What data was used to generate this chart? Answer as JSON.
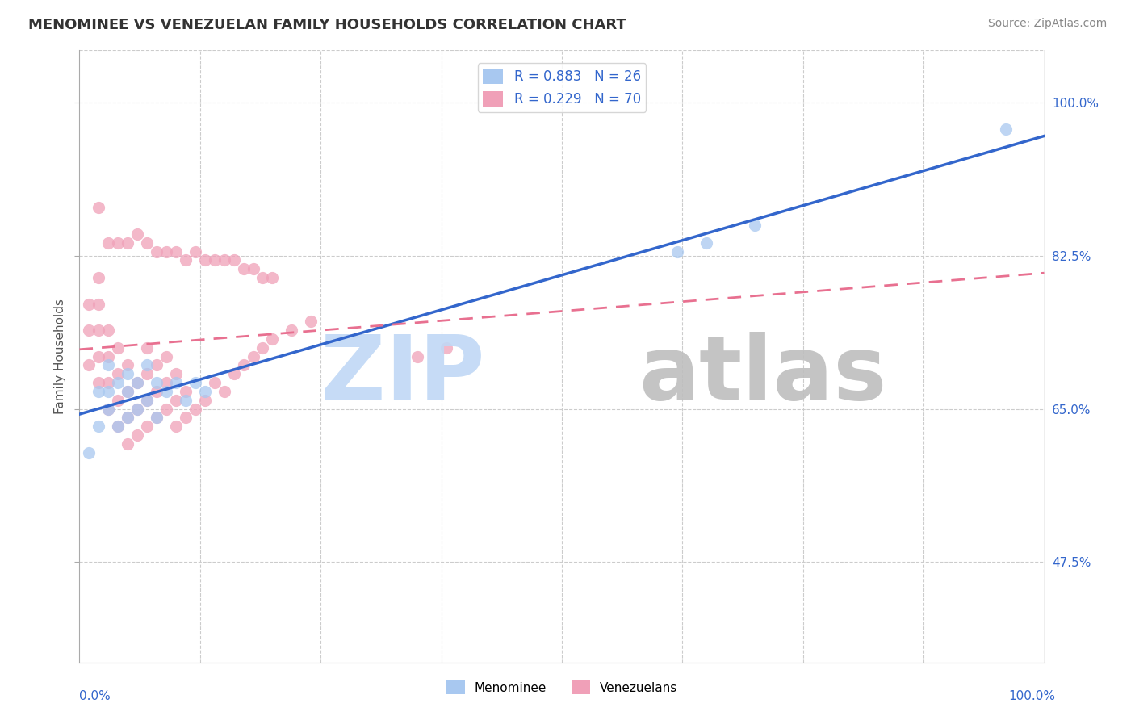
{
  "title": "MENOMINEE VS VENEZUELAN FAMILY HOUSEHOLDS CORRELATION CHART",
  "source": "Source: ZipAtlas.com",
  "ylabel": "Family Households",
  "ytick_vals": [
    0.475,
    0.65,
    0.825,
    1.0
  ],
  "ytick_labels": [
    "47.5%",
    "65.0%",
    "82.5%",
    "100.0%"
  ],
  "xmin": 0.0,
  "xmax": 1.0,
  "ymin": 0.36,
  "ymax": 1.06,
  "legend_blue_label": "R = 0.883   N = 26",
  "legend_pink_label": "R = 0.229   N = 70",
  "bottom_blue_label": "Menominee",
  "bottom_pink_label": "Venezuelans",
  "blue_scatter_color": "#A8C8F0",
  "pink_scatter_color": "#F0A0B8",
  "blue_line_color": "#3366CC",
  "pink_line_color": "#E87090",
  "grid_color": "#CCCCCC",
  "background_color": "#FFFFFF",
  "title_color": "#333333",
  "source_color": "#888888",
  "axis_label_color": "#555555",
  "tick_label_color": "#3366CC",
  "menominee_x": [
    0.01,
    0.02,
    0.02,
    0.03,
    0.03,
    0.03,
    0.04,
    0.04,
    0.05,
    0.05,
    0.05,
    0.06,
    0.06,
    0.07,
    0.07,
    0.08,
    0.08,
    0.09,
    0.1,
    0.11,
    0.12,
    0.13,
    0.62,
    0.65,
    0.7,
    0.96
  ],
  "menominee_y": [
    0.6,
    0.63,
    0.67,
    0.65,
    0.67,
    0.7,
    0.63,
    0.68,
    0.64,
    0.67,
    0.69,
    0.65,
    0.68,
    0.66,
    0.7,
    0.64,
    0.68,
    0.67,
    0.68,
    0.66,
    0.68,
    0.67,
    0.83,
    0.84,
    0.86,
    0.97
  ],
  "venezuelan_x": [
    0.01,
    0.01,
    0.01,
    0.02,
    0.02,
    0.02,
    0.02,
    0.02,
    0.03,
    0.03,
    0.03,
    0.03,
    0.04,
    0.04,
    0.04,
    0.04,
    0.05,
    0.05,
    0.05,
    0.05,
    0.06,
    0.06,
    0.06,
    0.07,
    0.07,
    0.07,
    0.07,
    0.08,
    0.08,
    0.08,
    0.09,
    0.09,
    0.09,
    0.1,
    0.1,
    0.1,
    0.11,
    0.11,
    0.12,
    0.13,
    0.14,
    0.15,
    0.16,
    0.17,
    0.18,
    0.19,
    0.2,
    0.22,
    0.24,
    0.02,
    0.03,
    0.04,
    0.05,
    0.06,
    0.07,
    0.08,
    0.09,
    0.1,
    0.11,
    0.12,
    0.13,
    0.14,
    0.15,
    0.16,
    0.17,
    0.18,
    0.19,
    0.2,
    0.35,
    0.38
  ],
  "venezuelan_y": [
    0.7,
    0.74,
    0.77,
    0.68,
    0.71,
    0.74,
    0.77,
    0.8,
    0.65,
    0.68,
    0.71,
    0.74,
    0.63,
    0.66,
    0.69,
    0.72,
    0.61,
    0.64,
    0.67,
    0.7,
    0.62,
    0.65,
    0.68,
    0.63,
    0.66,
    0.69,
    0.72,
    0.64,
    0.67,
    0.7,
    0.65,
    0.68,
    0.71,
    0.63,
    0.66,
    0.69,
    0.64,
    0.67,
    0.65,
    0.66,
    0.68,
    0.67,
    0.69,
    0.7,
    0.71,
    0.72,
    0.73,
    0.74,
    0.75,
    0.88,
    0.84,
    0.84,
    0.84,
    0.85,
    0.84,
    0.83,
    0.83,
    0.83,
    0.82,
    0.83,
    0.82,
    0.82,
    0.82,
    0.82,
    0.81,
    0.81,
    0.8,
    0.8,
    0.71,
    0.72
  ],
  "watermark_zip_color": "#C0D8F5",
  "watermark_atlas_color": "#BEBEBE"
}
